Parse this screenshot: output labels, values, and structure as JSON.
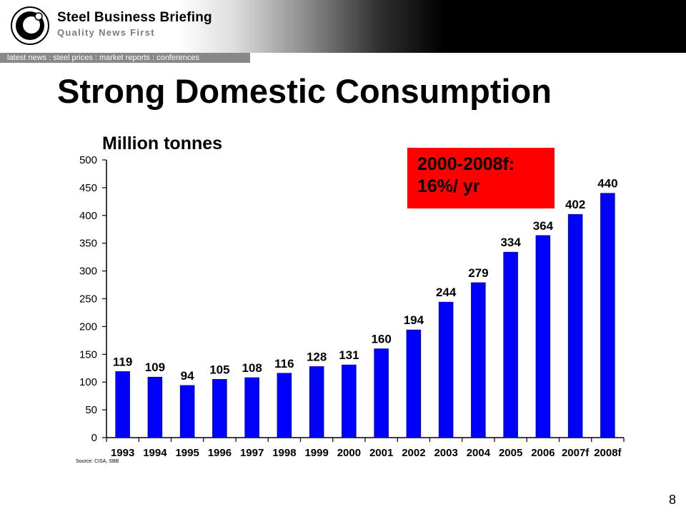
{
  "header": {
    "brand": "Steel Business Briefing",
    "tagline": "Quality News First",
    "nav": "latest news : steel prices : market reports : conferences"
  },
  "slide": {
    "title": "Strong Domestic Consumption",
    "page_number": "8",
    "source": "Source: CISA, SBB"
  },
  "callout": {
    "line1": "2000-2008f:",
    "line2": "16%/ yr",
    "color": "#ff0000"
  },
  "chart_data": {
    "type": "bar",
    "title": "",
    "ylabel": "Million tonnes",
    "xlabel": "",
    "categories": [
      "1993",
      "1994",
      "1995",
      "1996",
      "1997",
      "1998",
      "1999",
      "2000",
      "2001",
      "2002",
      "2003",
      "2004",
      "2005",
      "2006",
      "2007f",
      "2008f"
    ],
    "values": [
      119,
      109,
      94,
      105,
      108,
      116,
      128,
      131,
      160,
      194,
      244,
      279,
      334,
      364,
      402,
      440
    ],
    "data_labels": [
      "119",
      "109",
      "94",
      "105",
      "108",
      "116",
      "128",
      "131",
      "160",
      "194",
      "244",
      "279",
      "334",
      "364",
      "402",
      "440"
    ],
    "ylim": [
      0,
      500
    ],
    "yticks": [
      "0",
      "50",
      "100",
      "150",
      "200",
      "250",
      "300",
      "350",
      "400",
      "450",
      "500"
    ],
    "bar_color": "#0000ff",
    "grid": false,
    "legend": false
  }
}
